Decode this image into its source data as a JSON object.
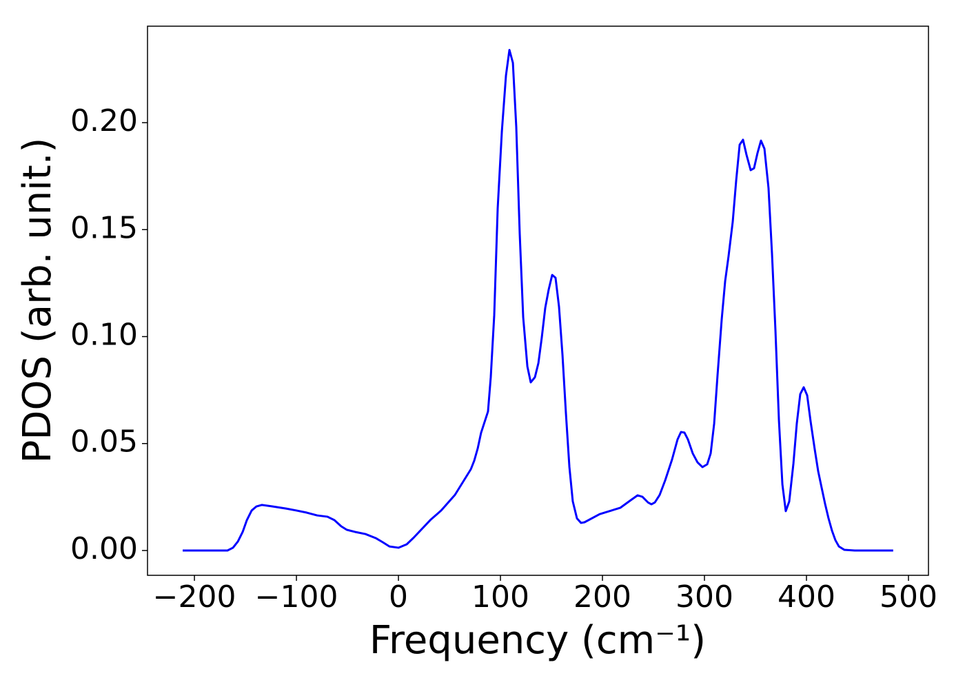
{
  "chart_data": {
    "type": "line",
    "x_label": "Frequency (cm⁻¹)",
    "y_label": "PDOS (arb. unit.)",
    "color": "#0000ff",
    "x": [
      -211.5,
      -167.6,
      -162.2,
      -157.4,
      -152.7,
      -148.6,
      -143.9,
      -139.2,
      -133.8,
      -123.6,
      -110.1,
      -100,
      -89.9,
      -79.7,
      -69.6,
      -62.8,
      -56.1,
      -50.7,
      -42.6,
      -32.4,
      -22.3,
      -15.5,
      -8.8,
      0,
      8.1,
      14.9,
      31.8,
      41.9,
      55.4,
      71,
      74.3,
      77.7,
      81,
      87.8,
      90.5,
      93.9,
      97.3,
      101.4,
      105.4,
      108.8,
      112.2,
      115.5,
      118.9,
      122.3,
      126.4,
      129.7,
      133.8,
      137.2,
      140.5,
      143.9,
      147.3,
      150.7,
      154,
      157.4,
      160.8,
      164.2,
      167.6,
      170.9,
      175,
      179,
      182.4,
      197.3,
      217.6,
      227.7,
      234.5,
      239.2,
      244.6,
      248,
      251.4,
      256.1,
      261.5,
      268.2,
      273.6,
      277,
      280.4,
      283.8,
      288.5,
      293.2,
      298,
      302.7,
      306.1,
      309.5,
      312.8,
      316.9,
      320.3,
      323.6,
      327.7,
      331.1,
      334.5,
      337.8,
      341.2,
      345.3,
      348.6,
      352,
      355.4,
      358.8,
      362.8,
      366.2,
      369.6,
      373,
      376.4,
      379.7,
      383.1,
      387.2,
      390.5,
      393.9,
      397.3,
      400.7,
      404.1,
      408.1,
      411.5,
      414.9,
      418.2,
      421.6,
      425,
      428.4,
      431.8,
      437.2,
      447.3,
      485
    ],
    "values": [
      0,
      0,
      0.0013,
      0.0042,
      0.0087,
      0.0142,
      0.0187,
      0.0206,
      0.0213,
      0.0206,
      0.0196,
      0.0187,
      0.0177,
      0.0164,
      0.0158,
      0.0142,
      0.0113,
      0.0097,
      0.0087,
      0.0077,
      0.0058,
      0.0039,
      0.0019,
      0.0013,
      0.0029,
      0.006,
      0.0145,
      0.0187,
      0.026,
      0.038,
      0.042,
      0.0477,
      0.055,
      0.065,
      0.081,
      0.11,
      0.16,
      0.196,
      0.222,
      0.234,
      0.228,
      0.198,
      0.148,
      0.109,
      0.086,
      0.0786,
      0.081,
      0.0876,
      0.0995,
      0.1134,
      0.122,
      0.1288,
      0.1275,
      0.114,
      0.0915,
      0.064,
      0.039,
      0.023,
      0.015,
      0.0129,
      0.0132,
      0.017,
      0.02,
      0.0235,
      0.0258,
      0.0251,
      0.0225,
      0.0216,
      0.0225,
      0.026,
      0.0328,
      0.0425,
      0.0519,
      0.0554,
      0.0551,
      0.0519,
      0.0454,
      0.0412,
      0.039,
      0.0403,
      0.0454,
      0.0593,
      0.0818,
      0.108,
      0.126,
      0.1375,
      0.1536,
      0.173,
      0.1897,
      0.192,
      0.185,
      0.1778,
      0.1787,
      0.1858,
      0.1916,
      0.1878,
      0.1694,
      0.1388,
      0.1027,
      0.0609,
      0.0309,
      0.0184,
      0.0229,
      0.0406,
      0.0593,
      0.0731,
      0.0763,
      0.0725,
      0.0602,
      0.0473,
      0.037,
      0.0293,
      0.0219,
      0.0151,
      0.0093,
      0.0048,
      0.0019,
      0.0003,
      0,
      0
    ],
    "xlim": [
      -246,
      519.6
    ],
    "ylim": [
      -0.0116,
      0.2451
    ],
    "xticks": [
      {
        "value": -200,
        "label": "−200"
      },
      {
        "value": -100,
        "label": "−100"
      },
      0,
      100,
      200,
      300,
      400,
      500
    ],
    "yticks": [
      {
        "value": 0,
        "label": "0.00"
      },
      {
        "value": 0.05,
        "label": "0.05"
      },
      {
        "value": 0.1,
        "label": "0.10"
      },
      {
        "value": 0.15,
        "label": "0.15"
      },
      {
        "value": 0.2,
        "label": "0.20"
      }
    ],
    "grid": false
  }
}
